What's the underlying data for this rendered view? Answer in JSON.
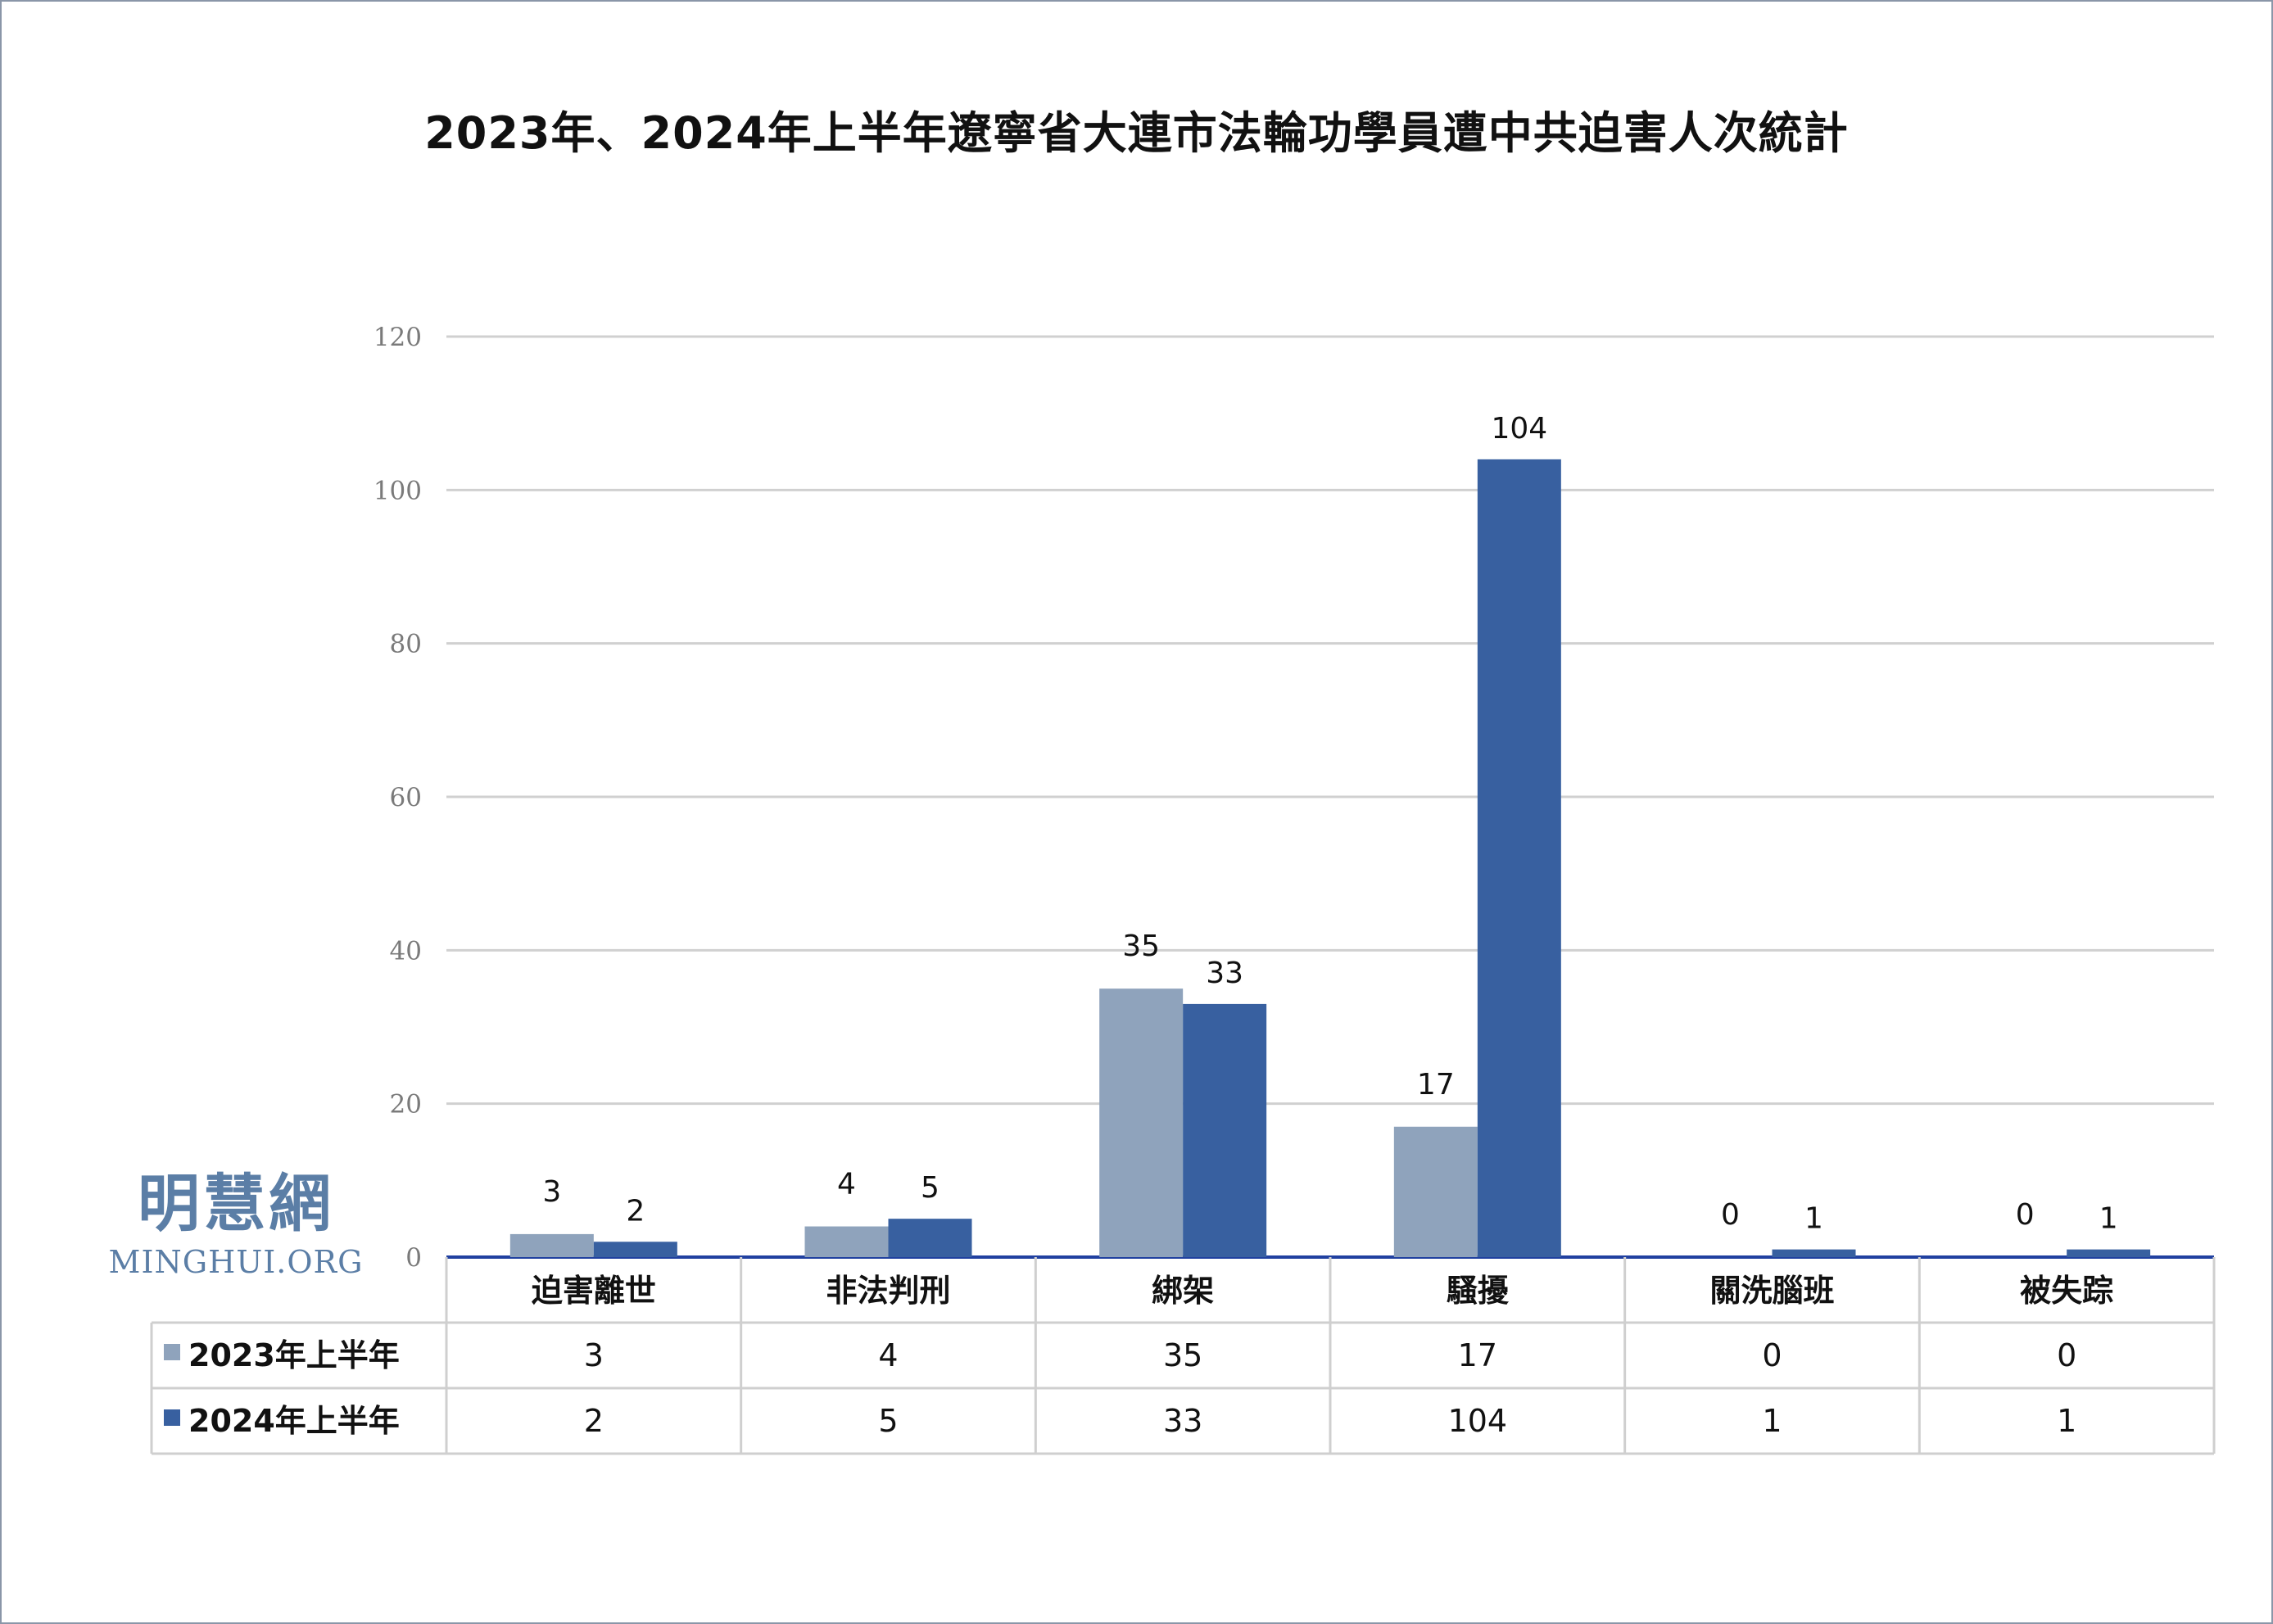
{
  "chart_data": {
    "type": "bar",
    "title": "2023年、2024年上半年遼寧省大連市法輪功學員遭中共迫害人次統計",
    "categories": [
      "迫害離世",
      "非法判刑",
      "綁架",
      "騷擾",
      "關洗腦班",
      "被失踪"
    ],
    "series": [
      {
        "name": "2023年上半年",
        "values": [
          3,
          4,
          35,
          17,
          0,
          0
        ],
        "color": "#8fa3bc"
      },
      {
        "name": "2024年上半年",
        "values": [
          2,
          5,
          33,
          104,
          1,
          1
        ],
        "color": "#3860a0"
      }
    ],
    "ylim": [
      0,
      120
    ],
    "yticks": [
      0,
      20,
      40,
      60,
      80,
      100,
      120
    ],
    "grid": true,
    "data_table": true,
    "axis_color": "#2040a0"
  },
  "watermark": {
    "cn": "明慧網",
    "en": "MINGHUI.ORG"
  }
}
